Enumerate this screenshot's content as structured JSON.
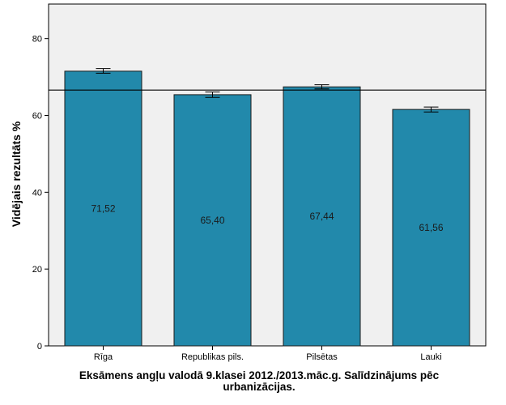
{
  "chart_data": {
    "type": "bar",
    "title": "",
    "xlabel": "Eksāmens angļu valodā 9.klasei 2012./2013.māc.g. Salīdzinājums pēc urbanizācijas.",
    "ylabel": "Vidējais rezultāts %",
    "categories": [
      "Rīga",
      "Republikas pils.",
      "Pilsētas",
      "Lauki"
    ],
    "values": [
      71.52,
      65.4,
      67.44,
      61.56
    ],
    "value_labels": [
      "71,52",
      "65,40",
      "67,44",
      "61,56"
    ],
    "error_bars": [
      [
        71.0,
        72.2
      ],
      [
        64.7,
        66.1
      ],
      [
        66.9,
        68.0
      ],
      [
        60.9,
        62.2
      ]
    ],
    "reference_line": 66.6,
    "ylim": [
      0,
      89
    ],
    "yticks": [
      0,
      20,
      40,
      60,
      80
    ],
    "grid": false,
    "colors": {
      "bar": "#2289ab",
      "bar_stroke": "#1a1a1a",
      "plot_background": "#f0f0f0"
    }
  }
}
